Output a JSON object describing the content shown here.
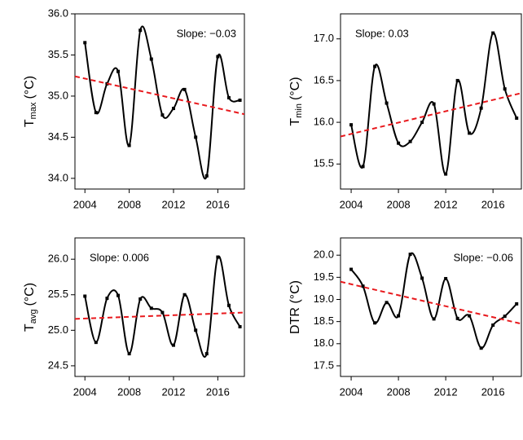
{
  "chart_data": [
    {
      "type": "line",
      "ylabel": {
        "text": "T",
        "subscript": "max",
        "unit": "(°C)"
      },
      "x": [
        2004,
        2005,
        2006,
        2007,
        2008,
        2009,
        2010,
        2011,
        2012,
        2013,
        2014,
        2015,
        2016,
        2017,
        2018
      ],
      "series": [
        {
          "color": "#000000",
          "values": [
            35.65,
            34.8,
            35.15,
            35.3,
            34.4,
            35.8,
            35.45,
            34.77,
            34.85,
            35.08,
            34.5,
            34.03,
            35.48,
            34.98,
            34.95
          ]
        }
      ],
      "trend": {
        "color": "#e8191d",
        "x": [
          2003.1,
          2018.4
        ],
        "values": [
          35.24,
          34.78
        ]
      },
      "annotation": "Slope: −0.03",
      "annotation_corner": "top-right",
      "xlim": [
        2003.1,
        2018.4
      ],
      "xticks": [
        2004,
        2008,
        2012,
        2016
      ],
      "ylim": [
        33.87,
        36.0
      ],
      "yticks": [
        {
          "value": 34,
          "label": "34.0"
        },
        34.5,
        {
          "value": 35,
          "label": "35.0"
        },
        35.5,
        {
          "value": 36,
          "label": "36.0"
        }
      ]
    },
    {
      "type": "line",
      "ylabel": {
        "text": "T",
        "subscript": "min",
        "unit": "(°C)"
      },
      "x": [
        2004,
        2005,
        2006,
        2007,
        2008,
        2009,
        2010,
        2011,
        2012,
        2013,
        2014,
        2015,
        2016,
        2017,
        2018
      ],
      "series": [
        {
          "color": "#000000",
          "values": [
            15.97,
            15.47,
            16.67,
            16.23,
            15.75,
            15.77,
            16.0,
            16.22,
            15.38,
            16.5,
            15.87,
            16.17,
            17.07,
            16.4,
            16.05
          ]
        }
      ],
      "trend": {
        "color": "#e8191d",
        "x": [
          2003.1,
          2018.4
        ],
        "values": [
          15.83,
          16.35
        ]
      },
      "annotation": "Slope: 0.03",
      "annotation_corner": "top-left",
      "xlim": [
        2003.1,
        2018.4
      ],
      "xticks": [
        2004,
        2008,
        2012,
        2016
      ],
      "ylim": [
        15.2,
        17.3
      ],
      "yticks": [
        15.5,
        {
          "value": 16,
          "label": "16.0"
        },
        16.5,
        {
          "value": 17,
          "label": "17.0"
        }
      ]
    },
    {
      "type": "line",
      "ylabel": {
        "text": "T",
        "subscript": "avg",
        "unit": "(°C)"
      },
      "x": [
        2004,
        2005,
        2006,
        2007,
        2008,
        2009,
        2010,
        2011,
        2012,
        2013,
        2014,
        2015,
        2016,
        2017,
        2018
      ],
      "series": [
        {
          "color": "#000000",
          "values": [
            25.48,
            24.83,
            25.45,
            25.49,
            24.67,
            25.44,
            25.31,
            25.25,
            24.79,
            25.5,
            25.0,
            24.67,
            26.03,
            25.35,
            25.05
          ]
        }
      ],
      "trend": {
        "color": "#e8191d",
        "x": [
          2003.1,
          2018.4
        ],
        "values": [
          25.16,
          25.25
        ]
      },
      "annotation": "Slope: 0.006",
      "annotation_corner": "top-left",
      "xlim": [
        2003.1,
        2018.4
      ],
      "xticks": [
        2004,
        2008,
        2012,
        2016
      ],
      "ylim": [
        24.35,
        26.3
      ],
      "yticks": [
        24.5,
        {
          "value": 25,
          "label": "25.0"
        },
        25.5,
        {
          "value": 26,
          "label": "26.0"
        }
      ]
    },
    {
      "type": "line",
      "ylabel": {
        "text": "DTR (°C)"
      },
      "x": [
        2004,
        2005,
        2006,
        2007,
        2008,
        2009,
        2010,
        2011,
        2012,
        2013,
        2014,
        2015,
        2016,
        2017,
        2018
      ],
      "series": [
        {
          "color": "#000000",
          "values": [
            19.68,
            19.3,
            18.47,
            18.93,
            18.63,
            20.02,
            19.48,
            18.56,
            19.47,
            18.57,
            18.63,
            17.9,
            18.42,
            18.62,
            18.9
          ]
        }
      ],
      "trend": {
        "color": "#e8191d",
        "x": [
          2003.1,
          2018.4
        ],
        "values": [
          19.4,
          18.45
        ]
      },
      "annotation": "Slope: −0.06",
      "annotation_corner": "top-right",
      "xlim": [
        2003.1,
        2018.4
      ],
      "xticks": [
        2004,
        2008,
        2012,
        2016
      ],
      "ylim": [
        17.26,
        20.39
      ],
      "yticks": [
        17.5,
        {
          "value": 18,
          "label": "18.0"
        },
        18.5,
        {
          "value": 19,
          "label": "19.0"
        },
        19.5,
        {
          "value": 20,
          "label": "20.0"
        }
      ]
    }
  ]
}
